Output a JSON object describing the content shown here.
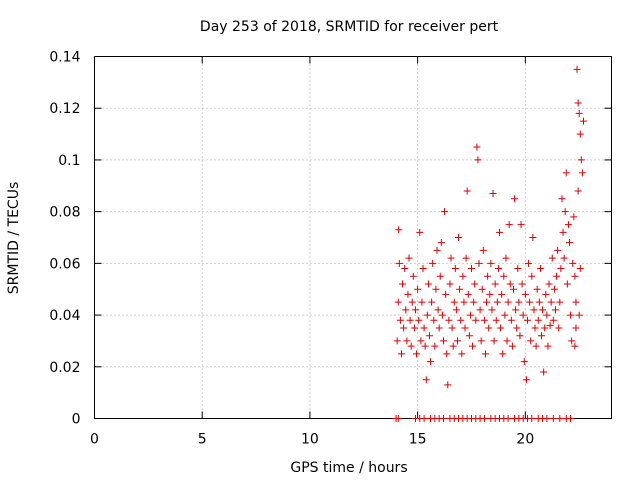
{
  "chart_data": {
    "type": "scatter",
    "title": "Day 253 of 2018, SRMTID for receiver pert",
    "xlabel": "GPS time / hours",
    "ylabel": "SRMTID / TECUs",
    "xlim": [
      0,
      24
    ],
    "ylim": [
      0,
      0.14
    ],
    "xticks": [
      "0",
      "5",
      "10",
      "15",
      "20"
    ],
    "xtick_values": [
      0,
      5,
      10,
      15,
      20
    ],
    "yticks": [
      "0",
      "0.02",
      "0.04",
      "0.06",
      "0.08",
      "0.1",
      "0.12",
      "0.14"
    ],
    "ytick_values": [
      0,
      0.02,
      0.04,
      0.06,
      0.08,
      0.1,
      0.12,
      0.14
    ],
    "grid": true,
    "marker": "plus",
    "colors": {
      "series": "#e00000"
    },
    "series": [
      {
        "points": [
          [
            14.05,
            0.03
          ],
          [
            14.1,
            0.045
          ],
          [
            14.12,
            0.073
          ],
          [
            14.15,
            0.06
          ],
          [
            14.2,
            0.038
          ],
          [
            14.25,
            0.025
          ],
          [
            14.3,
            0.052
          ],
          [
            14.35,
            0.035
          ],
          [
            14.4,
            0.058
          ],
          [
            14.45,
            0.042
          ],
          [
            14.5,
            0.03
          ],
          [
            14.55,
            0.048
          ],
          [
            14.6,
            0.062
          ],
          [
            14.65,
            0.038
          ],
          [
            14.7,
            0.028
          ],
          [
            14.75,
            0.045
          ],
          [
            14.8,
            0.055
          ],
          [
            14.85,
            0.035
          ],
          [
            14.9,
            0.042
          ],
          [
            14.95,
            0.025
          ],
          [
            15.0,
            0.05
          ],
          [
            15.05,
            0.038
          ],
          [
            15.1,
            0.072
          ],
          [
            15.15,
            0.03
          ],
          [
            15.2,
            0.045
          ],
          [
            15.25,
            0.058
          ],
          [
            15.3,
            0.035
          ],
          [
            15.35,
            0.028
          ],
          [
            15.4,
            0.015
          ],
          [
            15.45,
            0.04
          ],
          [
            15.5,
            0.052
          ],
          [
            15.55,
            0.032
          ],
          [
            15.6,
            0.022
          ],
          [
            15.65,
            0.045
          ],
          [
            15.7,
            0.06
          ],
          [
            15.75,
            0.038
          ],
          [
            15.8,
            0.028
          ],
          [
            15.85,
            0.05
          ],
          [
            15.9,
            0.065
          ],
          [
            15.95,
            0.042
          ],
          [
            16.0,
            0.035
          ],
          [
            16.05,
            0.055
          ],
          [
            16.1,
            0.068
          ],
          [
            16.15,
            0.04
          ],
          [
            16.2,
            0.03
          ],
          [
            16.25,
            0.08
          ],
          [
            16.3,
            0.048
          ],
          [
            16.35,
            0.025
          ],
          [
            16.4,
            0.013
          ],
          [
            16.45,
            0.038
          ],
          [
            16.5,
            0.052
          ],
          [
            16.55,
            0.062
          ],
          [
            16.6,
            0.035
          ],
          [
            16.65,
            0.028
          ],
          [
            16.7,
            0.045
          ],
          [
            16.75,
            0.058
          ],
          [
            16.8,
            0.042
          ],
          [
            16.85,
            0.03
          ],
          [
            16.9,
            0.07
          ],
          [
            16.95,
            0.05
          ],
          [
            17.0,
            0.038
          ],
          [
            17.05,
            0.025
          ],
          [
            17.1,
            0.055
          ],
          [
            17.15,
            0.045
          ],
          [
            17.2,
            0.035
          ],
          [
            17.25,
            0.062
          ],
          [
            17.3,
            0.088
          ],
          [
            17.35,
            0.048
          ],
          [
            17.4,
            0.032
          ],
          [
            17.45,
            0.04
          ],
          [
            17.5,
            0.058
          ],
          [
            17.55,
            0.028
          ],
          [
            17.6,
            0.045
          ],
          [
            17.65,
            0.052
          ],
          [
            17.7,
            0.038
          ],
          [
            17.75,
            0.105
          ],
          [
            17.8,
            0.1
          ],
          [
            17.85,
            0.06
          ],
          [
            17.9,
            0.042
          ],
          [
            17.95,
            0.03
          ],
          [
            18.0,
            0.05
          ],
          [
            18.05,
            0.065
          ],
          [
            18.1,
            0.038
          ],
          [
            18.15,
            0.025
          ],
          [
            18.2,
            0.045
          ],
          [
            18.25,
            0.055
          ],
          [
            18.3,
            0.035
          ],
          [
            18.35,
            0.048
          ],
          [
            18.4,
            0.06
          ],
          [
            18.45,
            0.042
          ],
          [
            18.5,
            0.087
          ],
          [
            18.55,
            0.03
          ],
          [
            18.6,
            0.052
          ],
          [
            18.65,
            0.038
          ],
          [
            18.7,
            0.045
          ],
          [
            18.75,
            0.058
          ],
          [
            18.8,
            0.072
          ],
          [
            18.85,
            0.035
          ],
          [
            18.9,
            0.048
          ],
          [
            18.95,
            0.025
          ],
          [
            19.0,
            0.055
          ],
          [
            19.05,
            0.04
          ],
          [
            19.1,
            0.062
          ],
          [
            19.15,
            0.03
          ],
          [
            19.2,
            0.045
          ],
          [
            19.25,
            0.075
          ],
          [
            19.3,
            0.052
          ],
          [
            19.35,
            0.038
          ],
          [
            19.4,
            0.028
          ],
          [
            19.45,
            0.05
          ],
          [
            19.5,
            0.085
          ],
          [
            19.55,
            0.042
          ],
          [
            19.6,
            0.035
          ],
          [
            19.65,
            0.058
          ],
          [
            19.7,
            0.045
          ],
          [
            19.75,
            0.032
          ],
          [
            19.8,
            0.075
          ],
          [
            19.85,
            0.052
          ],
          [
            19.9,
            0.04
          ],
          [
            19.95,
            0.022
          ],
          [
            20.0,
            0.048
          ],
          [
            20.05,
            0.015
          ],
          [
            20.1,
            0.038
          ],
          [
            20.15,
            0.06
          ],
          [
            20.2,
            0.045
          ],
          [
            20.25,
            0.03
          ],
          [
            20.3,
            0.055
          ],
          [
            20.35,
            0.07
          ],
          [
            20.4,
            0.042
          ],
          [
            20.45,
            0.035
          ],
          [
            20.5,
            0.028
          ],
          [
            20.55,
            0.05
          ],
          [
            20.6,
            0.038
          ],
          [
            20.65,
            0.045
          ],
          [
            20.7,
            0.058
          ],
          [
            20.75,
            0.032
          ],
          [
            20.8,
            0.042
          ],
          [
            20.85,
            0.018
          ],
          [
            20.9,
            0.035
          ],
          [
            20.95,
            0.048
          ],
          [
            21.0,
            0.04
          ],
          [
            21.05,
            0.028
          ],
          [
            21.1,
            0.052
          ],
          [
            21.15,
            0.036
          ],
          [
            21.2,
            0.045
          ],
          [
            21.25,
            0.062
          ],
          [
            21.3,
            0.038
          ],
          [
            21.35,
            0.05
          ],
          [
            21.4,
            0.042
          ],
          [
            21.45,
            0.055
          ],
          [
            21.5,
            0.065
          ],
          [
            21.55,
            0.035
          ],
          [
            21.6,
            0.045
          ],
          [
            21.65,
            0.058
          ],
          [
            21.7,
            0.085
          ],
          [
            21.75,
            0.072
          ],
          [
            21.8,
            0.062
          ],
          [
            21.85,
            0.08
          ],
          [
            21.9,
            0.095
          ],
          [
            21.95,
            0.052
          ],
          [
            22.0,
            0.075
          ],
          [
            22.05,
            0.068
          ],
          [
            22.1,
            0.04
          ],
          [
            22.15,
            0.03
          ],
          [
            22.2,
            0.06
          ],
          [
            22.25,
            0.078
          ],
          [
            22.3,
            0.055
          ],
          [
            22.35,
            0.045
          ],
          [
            22.4,
            0.135
          ],
          [
            22.45,
            0.122
          ],
          [
            22.5,
            0.118
          ],
          [
            22.55,
            0.11
          ],
          [
            22.6,
            0.1
          ],
          [
            22.65,
            0.095
          ],
          [
            22.7,
            0.115
          ],
          [
            22.45,
            0.088
          ],
          [
            22.35,
            0.035
          ],
          [
            22.3,
            0.028
          ],
          [
            22.5,
            0.04
          ],
          [
            22.55,
            0.058
          ]
        ]
      },
      {
        "points": [
          [
            14.0,
            0
          ],
          [
            14.1,
            0
          ],
          [
            14.9,
            0
          ],
          [
            15.1,
            0
          ],
          [
            15.3,
            0
          ],
          [
            15.6,
            0
          ],
          [
            15.8,
            0
          ],
          [
            16.0,
            0
          ],
          [
            16.2,
            0
          ],
          [
            16.5,
            0
          ],
          [
            16.7,
            0
          ],
          [
            16.9,
            0
          ],
          [
            17.1,
            0
          ],
          [
            17.3,
            0
          ],
          [
            17.5,
            0
          ],
          [
            17.7,
            0
          ],
          [
            17.9,
            0
          ],
          [
            18.1,
            0
          ],
          [
            18.4,
            0
          ],
          [
            18.6,
            0
          ],
          [
            18.8,
            0
          ],
          [
            19.0,
            0
          ],
          [
            19.2,
            0
          ],
          [
            19.5,
            0
          ],
          [
            19.7,
            0
          ],
          [
            19.9,
            0
          ],
          [
            20.1,
            0
          ],
          [
            20.3,
            0
          ],
          [
            20.6,
            0
          ],
          [
            20.8,
            0
          ],
          [
            21.0,
            0
          ],
          [
            21.3,
            0
          ],
          [
            21.6,
            0
          ],
          [
            21.9,
            0
          ],
          [
            22.1,
            0
          ]
        ]
      }
    ]
  }
}
